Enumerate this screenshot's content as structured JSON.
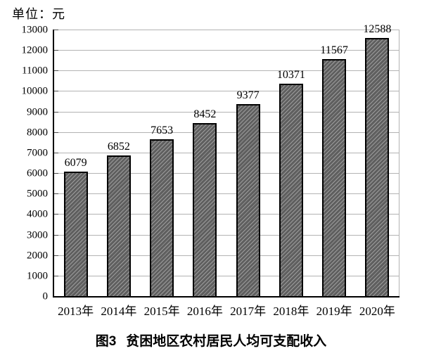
{
  "unit_label": "单位：元",
  "caption": {
    "figure_label": "图3",
    "title": "贫困地区农村居民人均可支配收入"
  },
  "chart_data": {
    "type": "bar",
    "categories": [
      "2013年",
      "2014年",
      "2015年",
      "2016年",
      "2017年",
      "2018年",
      "2019年",
      "2020年"
    ],
    "values": [
      6079,
      6852,
      7653,
      8452,
      9377,
      10371,
      11567,
      12588
    ],
    "title": "图3 贫困地区农村居民人均可支配收入",
    "unit_label": "单位：元",
    "xlabel": "",
    "ylabel": "元",
    "ylim": [
      0,
      13000
    ],
    "ytick_step": 1000,
    "grid": true,
    "legend_position": "none",
    "bar_pattern": "diagonal-hatch",
    "colors": {
      "bar_fill": "#5f5f5f",
      "bar_hatch": "#9c9c9c",
      "bar_border": "#000000",
      "gridline": "#b3b3b3",
      "axis": "#000000",
      "text": "#000000",
      "background": "#ffffff"
    }
  }
}
